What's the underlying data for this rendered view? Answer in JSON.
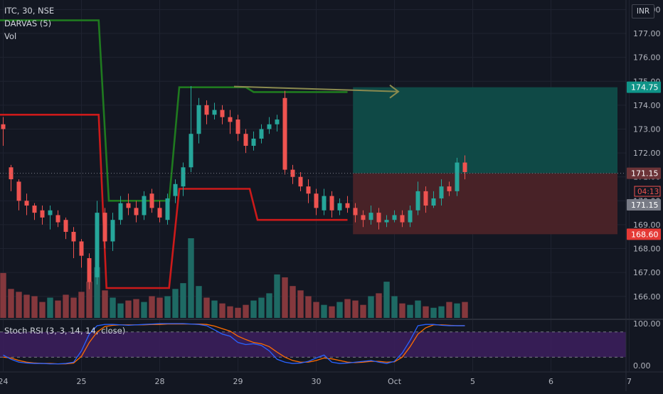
{
  "legend": {
    "symbol": "ITC, 30, NSE",
    "darvas": "DARVAS (5)",
    "vol": "Vol"
  },
  "currency_button": "INR",
  "stoch_label": "Stoch RSI (3, 3, 14, 14, close)",
  "colors": {
    "background": "#131722",
    "up": "#26a69a",
    "down": "#ef5350",
    "darvas_top": "#1f7a1f",
    "darvas_bottom": "#cc1a1a",
    "profit_zone": "#0f4c49",
    "loss_zone": "#4b2328",
    "stoch_band": "#3d1f5e",
    "stoch_k": "#2962ff",
    "stoch_d": "#ff6d00",
    "arrow": "#8a8a4f"
  },
  "chart_data": {
    "type": "candlestick",
    "title": "ITC, 30, NSE",
    "price_axis": {
      "ticks": [
        "178.00",
        "177.00",
        "176.00",
        "175.00",
        "174.00",
        "173.00",
        "172.00",
        "171.00",
        "170.00",
        "169.00",
        "168.00",
        "167.00",
        "166.00"
      ],
      "ylim": [
        165.1,
        178.4
      ]
    },
    "time_axis": {
      "labels": [
        "24",
        "25",
        "28",
        "29",
        "30",
        "Oct",
        "5",
        "6",
        "7"
      ],
      "index_positions": [
        0,
        10,
        20,
        30,
        40,
        50,
        60,
        70,
        80
      ]
    },
    "candles": [
      [
        173.2,
        173.0,
        173.5,
        172.3
      ],
      [
        171.4,
        170.9,
        171.5,
        170.4
      ],
      [
        170.8,
        170.0,
        170.9,
        169.6
      ],
      [
        170.0,
        169.8,
        170.3,
        169.4
      ],
      [
        169.8,
        169.5,
        169.9,
        169.2
      ],
      [
        169.6,
        169.3,
        169.8,
        169.0
      ],
      [
        169.4,
        169.6,
        169.8,
        168.8
      ],
      [
        169.4,
        169.1,
        169.6,
        168.9
      ],
      [
        169.2,
        168.7,
        169.3,
        168.4
      ],
      [
        168.7,
        168.3,
        168.9,
        167.6
      ],
      [
        168.3,
        167.7,
        168.4,
        167.2
      ],
      [
        167.6,
        166.6,
        167.8,
        166.3
      ],
      [
        166.8,
        169.5,
        170.0,
        166.5
      ],
      [
        169.5,
        168.3,
        169.7,
        168.0
      ],
      [
        168.3,
        169.2,
        169.5,
        167.9
      ],
      [
        169.2,
        169.9,
        170.2,
        169.0
      ],
      [
        169.9,
        169.7,
        170.3,
        169.4
      ],
      [
        169.7,
        169.4,
        170.0,
        169.1
      ],
      [
        169.4,
        170.2,
        170.4,
        169.2
      ],
      [
        170.3,
        169.7,
        170.5,
        169.5
      ],
      [
        169.7,
        169.3,
        170.0,
        169.1
      ],
      [
        169.2,
        170.1,
        170.3,
        169.0
      ],
      [
        170.2,
        170.7,
        170.9,
        169.9
      ],
      [
        170.6,
        171.4,
        171.6,
        170.2
      ],
      [
        171.4,
        172.8,
        174.8,
        171.2
      ],
      [
        172.8,
        174.0,
        174.3,
        172.4
      ],
      [
        174.0,
        173.6,
        174.2,
        173.2
      ],
      [
        173.6,
        173.8,
        174.1,
        173.4
      ],
      [
        173.8,
        173.5,
        174.0,
        173.2
      ],
      [
        173.5,
        173.3,
        173.8,
        172.8
      ],
      [
        173.4,
        172.8,
        173.6,
        172.5
      ],
      [
        172.8,
        172.3,
        173.0,
        172.0
      ],
      [
        172.3,
        172.6,
        172.9,
        172.1
      ],
      [
        172.6,
        173.0,
        173.2,
        172.4
      ],
      [
        173.0,
        173.2,
        173.5,
        172.8
      ],
      [
        173.2,
        173.4,
        173.6,
        172.9
      ],
      [
        174.3,
        171.3,
        174.6,
        171.1
      ],
      [
        171.3,
        171.0,
        171.5,
        170.7
      ],
      [
        171.0,
        170.6,
        171.2,
        170.4
      ],
      [
        170.6,
        170.3,
        170.9,
        169.9
      ],
      [
        170.3,
        169.7,
        170.5,
        169.4
      ],
      [
        169.6,
        170.2,
        170.5,
        169.4
      ],
      [
        170.2,
        169.6,
        170.4,
        169.3
      ],
      [
        169.6,
        169.9,
        170.1,
        169.4
      ],
      [
        169.9,
        169.7,
        170.2,
        169.5
      ],
      [
        169.7,
        169.4,
        169.9,
        169.1
      ],
      [
        169.4,
        169.2,
        169.6,
        168.9
      ],
      [
        169.2,
        169.5,
        169.8,
        169.0
      ],
      [
        169.5,
        169.1,
        169.7,
        168.8
      ],
      [
        169.1,
        169.2,
        169.4,
        168.9
      ],
      [
        169.2,
        169.4,
        169.6,
        169.1
      ],
      [
        169.4,
        169.1,
        169.6,
        168.9
      ],
      [
        169.1,
        169.6,
        169.8,
        168.9
      ],
      [
        169.6,
        170.4,
        170.8,
        169.4
      ],
      [
        170.4,
        169.8,
        170.6,
        169.5
      ],
      [
        169.8,
        170.1,
        170.4,
        169.7
      ],
      [
        170.1,
        170.6,
        170.9,
        169.8
      ],
      [
        170.6,
        170.4,
        170.8,
        170.2
      ],
      [
        170.4,
        171.6,
        171.8,
        170.2
      ],
      [
        171.6,
        171.2,
        171.9,
        170.9
      ]
    ],
    "volume": [
      62,
      40,
      36,
      32,
      30,
      22,
      28,
      24,
      32,
      28,
      36,
      50,
      70,
      38,
      28,
      20,
      24,
      26,
      22,
      30,
      28,
      30,
      40,
      48,
      110,
      44,
      28,
      24,
      20,
      16,
      14,
      18,
      24,
      28,
      34,
      60,
      56,
      44,
      38,
      30,
      22,
      18,
      16,
      22,
      26,
      24,
      18,
      30,
      34,
      50,
      30,
      20,
      18,
      24,
      16,
      14,
      16,
      22,
      20,
      22
    ],
    "darvas_top": {
      "series_name": "DARVAS (5)",
      "points": [
        [
          -0.5,
          177.55
        ],
        [
          12.2,
          177.55
        ],
        [
          13.5,
          170.0
        ],
        [
          21.2,
          170.0
        ],
        [
          22.5,
          174.75
        ],
        [
          31.0,
          174.75
        ],
        [
          32.0,
          174.55
        ],
        [
          44.0,
          174.55
        ]
      ]
    },
    "darvas_bottom": {
      "points": [
        [
          -0.5,
          173.6
        ],
        [
          12.2,
          173.6
        ],
        [
          13.2,
          166.35
        ],
        [
          21.2,
          166.35
        ],
        [
          22.5,
          170.5
        ],
        [
          31.5,
          170.5
        ],
        [
          32.5,
          169.2
        ],
        [
          44.0,
          169.2
        ]
      ]
    },
    "last_close": 171.15,
    "position": {
      "target": 174.75,
      "entry": 171.15,
      "stop": 168.6,
      "start_index": 44.7,
      "end_index": 78.5
    },
    "price_labels": {
      "target": "174.75",
      "entry": "171.15",
      "countdown": "04:13",
      "last": "171.15",
      "stop": "168.60"
    },
    "stoch_rsi": {
      "label": "Stoch RSI (3, 3, 14, 14, close)",
      "ticks": [
        "100.00",
        "0.00"
      ],
      "upper_band": 80,
      "lower_band": 20,
      "k": [
        25,
        15,
        8,
        6,
        5,
        5,
        4,
        4,
        5,
        8,
        35,
        75,
        95,
        98,
        98,
        97,
        96,
        97,
        98,
        99,
        100,
        100,
        100,
        100,
        99,
        98,
        95,
        85,
        75,
        70,
        55,
        50,
        52,
        48,
        35,
        15,
        8,
        5,
        6,
        10,
        18,
        25,
        8,
        5,
        6,
        8,
        10,
        12,
        8,
        5,
        10,
        30,
        60,
        95,
        98,
        98,
        96,
        95,
        95,
        95
      ],
      "d": [
        20,
        18,
        12,
        8,
        6,
        5,
        5,
        4,
        4,
        6,
        22,
        55,
        80,
        93,
        96,
        97,
        97,
        97,
        97,
        98,
        98,
        99,
        99,
        99,
        99,
        99,
        98,
        94,
        88,
        82,
        70,
        62,
        55,
        52,
        45,
        32,
        20,
        12,
        8,
        8,
        12,
        18,
        16,
        12,
        8,
        7,
        8,
        10,
        10,
        8,
        9,
        20,
        45,
        75,
        90,
        97,
        97,
        96,
        95,
        95
      ]
    }
  }
}
